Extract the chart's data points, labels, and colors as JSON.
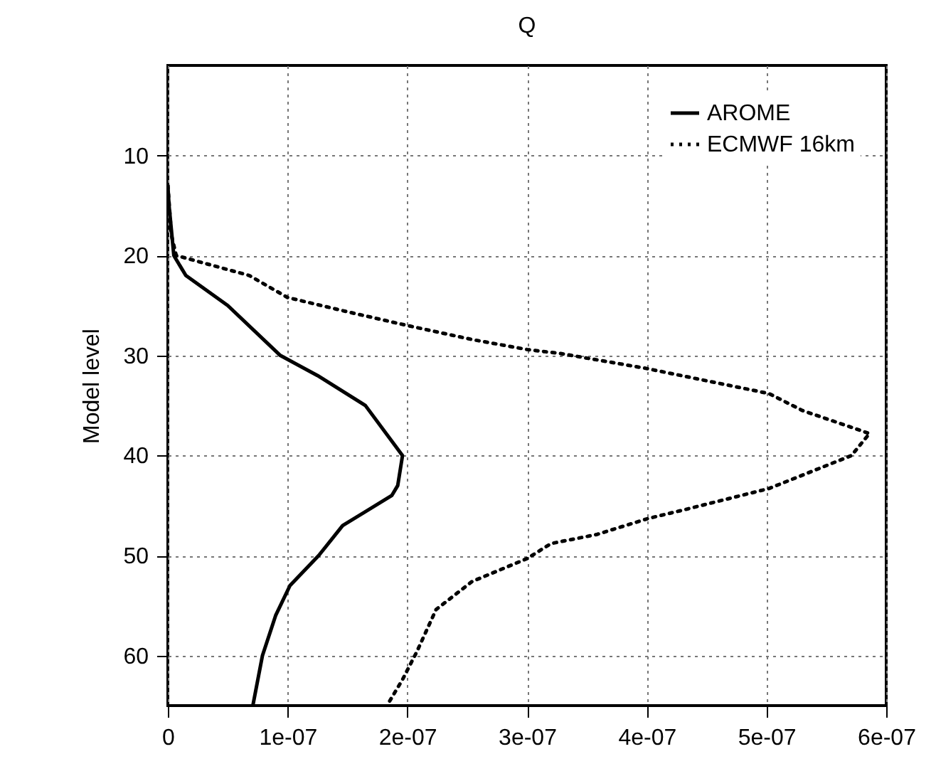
{
  "chart_data": {
    "type": "line",
    "title": "Q",
    "ylabel": "Model level",
    "xlim": [
      0,
      6e-07
    ],
    "ylim": [
      65,
      1
    ],
    "xticks": [
      0,
      {
        "value": 1e-07,
        "label": "1e-07"
      },
      {
        "value": 2e-07,
        "label": "2e-07"
      },
      {
        "value": 3e-07,
        "label": "3e-07"
      },
      {
        "value": 4e-07,
        "label": "4e-07"
      },
      {
        "value": 5e-07,
        "label": "5e-07"
      },
      {
        "value": 6e-07,
        "label": "6e-07"
      }
    ],
    "yticks": [
      10,
      20,
      30,
      40,
      50,
      60
    ],
    "grid": true,
    "legend": "top right",
    "series": [
      {
        "name": "AROME",
        "color": "#000000",
        "line_style": "solid",
        "x": [
          0,
          1e-09,
          5e-09,
          1.5e-08,
          5e-08,
          9.4e-08,
          1.25e-07,
          1.65e-07,
          1.96e-07,
          1.92e-07,
          1.87e-07,
          1.46e-07,
          1.26e-07,
          1.02e-07,
          9e-08,
          7.9e-08,
          7.1e-08
        ],
        "values": [
          13,
          15,
          20,
          22,
          25,
          30,
          32,
          35,
          40,
          43,
          44,
          47,
          50,
          53,
          56,
          60,
          65
        ]
      },
      {
        "name": "ECMWF 16km",
        "color": "#000000",
        "line_style": "dotted",
        "x": [
          0,
          3e-09,
          7e-09,
          6.8e-08,
          1e-07,
          1.49e-07,
          2e-07,
          2.54e-07,
          3e-07,
          3.28e-07,
          4e-07,
          5.02e-07,
          5.3e-07,
          5.86e-07,
          5.71e-07,
          5.02e-07,
          4.32e-07,
          4.01e-07,
          3.58e-07,
          3.2e-07,
          3e-07,
          2.54e-07,
          2.24e-07,
          2.08e-07,
          1.96e-07,
          1.85e-07
        ],
        "values": [
          13,
          18,
          20,
          22,
          24.2,
          25.6,
          27,
          28.4,
          29.4,
          29.8,
          31.3,
          33.8,
          35.5,
          37.8,
          40,
          43.3,
          45.4,
          46.3,
          47.9,
          48.8,
          50.3,
          52.6,
          55.4,
          59.6,
          62.4,
          64.6
        ]
      }
    ]
  }
}
